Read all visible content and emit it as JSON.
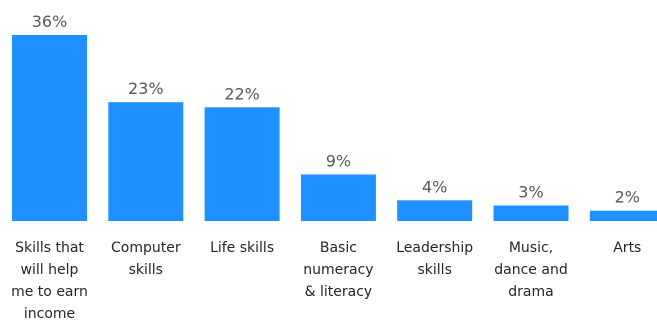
{
  "chart_data": {
    "type": "bar",
    "title": "",
    "xlabel": "",
    "ylabel": "",
    "ylim": [
      0,
      36
    ],
    "grid": false,
    "legend": "none",
    "bar_color": "#1E90FF",
    "categories": [
      [
        "Skills that",
        "will help",
        "me to earn",
        "income"
      ],
      [
        "Computer",
        "skills"
      ],
      [
        "Life skills"
      ],
      [
        "Basic",
        "numeracy",
        "& literacy"
      ],
      [
        "Leadership",
        "skills"
      ],
      [
        "Music,",
        "dance and",
        "drama"
      ],
      [
        "Arts"
      ]
    ],
    "values": [
      36,
      23,
      22,
      9,
      4,
      3,
      2
    ],
    "value_labels": [
      "36%",
      "23%",
      "22%",
      "9%",
      "4%",
      "3%",
      "2%"
    ]
  }
}
